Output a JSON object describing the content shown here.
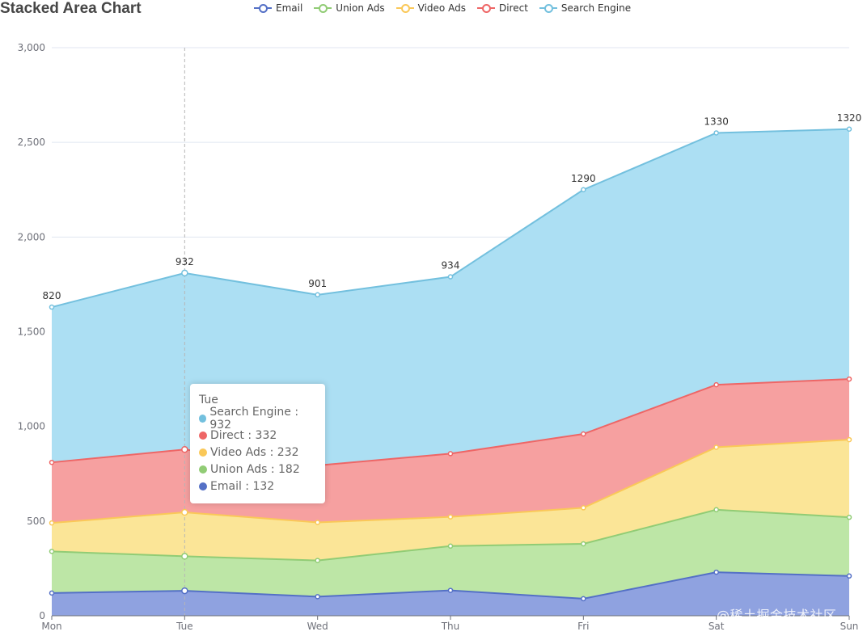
{
  "chart_data": {
    "type": "area",
    "stacked": true,
    "title": "Stacked Area Chart",
    "categories": [
      "Mon",
      "Tue",
      "Wed",
      "Thu",
      "Fri",
      "Sat",
      "Sun"
    ],
    "ylim": [
      0,
      3000
    ],
    "yticks": [
      0,
      500,
      1000,
      1500,
      2000,
      2500,
      3000
    ],
    "ytick_labels": [
      "0",
      "500",
      "1,000",
      "1,500",
      "2,000",
      "2,500",
      "3,000"
    ],
    "legend_position": "top-center",
    "series": [
      {
        "name": "Email",
        "values": [
          120,
          132,
          101,
          134,
          90,
          230,
          210
        ],
        "color": "#5470c6"
      },
      {
        "name": "Union Ads",
        "values": [
          220,
          182,
          191,
          234,
          290,
          330,
          310
        ],
        "color": "#91cc75"
      },
      {
        "name": "Video Ads",
        "values": [
          150,
          232,
          201,
          154,
          190,
          330,
          410
        ],
        "color": "#fac858"
      },
      {
        "name": "Direct",
        "values": [
          320,
          332,
          301,
          334,
          390,
          330,
          320
        ],
        "color": "#ee6666"
      },
      {
        "name": "Search Engine",
        "values": [
          820,
          932,
          901,
          934,
          1290,
          1330,
          1320
        ],
        "color": "#73c0de"
      }
    ],
    "top_labels": [
      "820",
      "932",
      "901",
      "934",
      "1290",
      "1330",
      "1320"
    ]
  },
  "tooltip": {
    "title": "Tue",
    "rows": [
      {
        "label": "Search Engine : 932",
        "color": "#73c0de"
      },
      {
        "label": "Direct : 332",
        "color": "#ee6666"
      },
      {
        "label": "Video Ads : 232",
        "color": "#fac858"
      },
      {
        "label": "Union Ads : 182",
        "color": "#91cc75"
      },
      {
        "label": "Email : 132",
        "color": "#5470c6"
      }
    ]
  },
  "watermark": "@稀土掘金技术社区"
}
